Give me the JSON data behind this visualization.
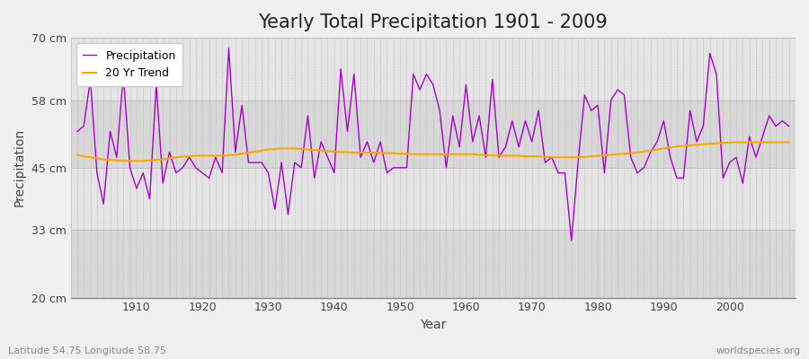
{
  "title": "Yearly Total Precipitation 1901 - 2009",
  "xlabel": "Year",
  "ylabel": "Precipitation",
  "subtitle": "Latitude 54.75 Longitude 58.75",
  "watermark": "worldspecies.org",
  "years": [
    1901,
    1902,
    1903,
    1904,
    1905,
    1906,
    1907,
    1908,
    1909,
    1910,
    1911,
    1912,
    1913,
    1914,
    1915,
    1916,
    1917,
    1918,
    1919,
    1920,
    1921,
    1922,
    1923,
    1924,
    1925,
    1926,
    1927,
    1928,
    1929,
    1930,
    1931,
    1932,
    1933,
    1934,
    1935,
    1936,
    1937,
    1938,
    1939,
    1940,
    1941,
    1942,
    1943,
    1944,
    1945,
    1946,
    1947,
    1948,
    1949,
    1950,
    1951,
    1952,
    1953,
    1954,
    1955,
    1956,
    1957,
    1958,
    1959,
    1960,
    1961,
    1962,
    1963,
    1964,
    1965,
    1966,
    1967,
    1968,
    1969,
    1970,
    1971,
    1972,
    1973,
    1974,
    1975,
    1976,
    1977,
    1978,
    1979,
    1980,
    1981,
    1982,
    1983,
    1984,
    1985,
    1986,
    1987,
    1988,
    1989,
    1990,
    1991,
    1992,
    1993,
    1994,
    1995,
    1996,
    1997,
    1998,
    1999,
    2000,
    2001,
    2002,
    2003,
    2004,
    2005,
    2006,
    2007,
    2008,
    2009
  ],
  "precipitation": [
    52,
    53,
    62,
    44,
    38,
    52,
    47,
    63,
    45,
    41,
    44,
    39,
    61,
    42,
    48,
    44,
    45,
    47,
    45,
    44,
    43,
    47,
    44,
    68,
    48,
    57,
    46,
    46,
    46,
    44,
    37,
    46,
    36,
    46,
    45,
    55,
    43,
    50,
    47,
    44,
    64,
    52,
    63,
    47,
    50,
    46,
    50,
    44,
    45,
    45,
    45,
    63,
    60,
    63,
    61,
    56,
    45,
    55,
    49,
    61,
    50,
    55,
    47,
    62,
    47,
    49,
    54,
    49,
    54,
    50,
    56,
    46,
    47,
    44,
    44,
    31,
    46,
    59,
    56,
    57,
    44,
    58,
    60,
    59,
    47,
    44,
    45,
    48,
    50,
    54,
    47,
    43,
    43,
    56,
    50,
    53,
    67,
    63,
    43,
    46,
    47,
    42,
    51,
    47,
    51,
    55,
    53,
    54,
    53
  ],
  "trend": [
    47.5,
    47.2,
    47.0,
    46.8,
    46.6,
    46.5,
    46.4,
    46.3,
    46.3,
    46.3,
    46.3,
    46.4,
    46.5,
    46.6,
    46.8,
    47.0,
    47.1,
    47.2,
    47.3,
    47.3,
    47.3,
    47.3,
    47.3,
    47.4,
    47.5,
    47.7,
    47.9,
    48.1,
    48.3,
    48.5,
    48.6,
    48.7,
    48.7,
    48.7,
    48.6,
    48.5,
    48.4,
    48.3,
    48.2,
    48.1,
    48.0,
    48.0,
    47.9,
    47.9,
    47.9,
    47.9,
    47.9,
    47.8,
    47.8,
    47.7,
    47.7,
    47.6,
    47.6,
    47.6,
    47.6,
    47.6,
    47.6,
    47.6,
    47.6,
    47.6,
    47.6,
    47.5,
    47.4,
    47.4,
    47.3,
    47.3,
    47.3,
    47.3,
    47.2,
    47.2,
    47.2,
    47.1,
    47.0,
    47.0,
    47.0,
    47.0,
    47.0,
    47.1,
    47.2,
    47.3,
    47.4,
    47.5,
    47.6,
    47.7,
    47.8,
    47.9,
    48.1,
    48.3,
    48.5,
    48.7,
    48.9,
    49.1,
    49.2,
    49.3,
    49.4,
    49.5,
    49.6,
    49.7,
    49.8,
    49.8,
    49.9,
    49.9,
    49.9,
    49.9,
    49.9,
    49.9,
    49.9,
    49.9,
    49.9
  ],
  "precip_color": "#AA00CC",
  "trend_color": "#FFA500",
  "fig_bg_color": "#F0F0F0",
  "plot_bg_color": "#E0E0E0",
  "band_colors": [
    "#D8D8D8",
    "#E4E4E4"
  ],
  "grid_color": "#C8C8C8",
  "spine_color": "#888888",
  "ylim": [
    20,
    70
  ],
  "yticks": [
    20,
    33,
    45,
    58,
    70
  ],
  "ytick_labels": [
    "20 cm",
    "33 cm",
    "45 cm",
    "58 cm",
    "70 cm"
  ],
  "xticks": [
    1910,
    1920,
    1930,
    1940,
    1950,
    1960,
    1970,
    1980,
    1990,
    2000
  ],
  "title_fontsize": 15,
  "axis_fontsize": 10,
  "tick_fontsize": 9,
  "legend_fontsize": 9
}
